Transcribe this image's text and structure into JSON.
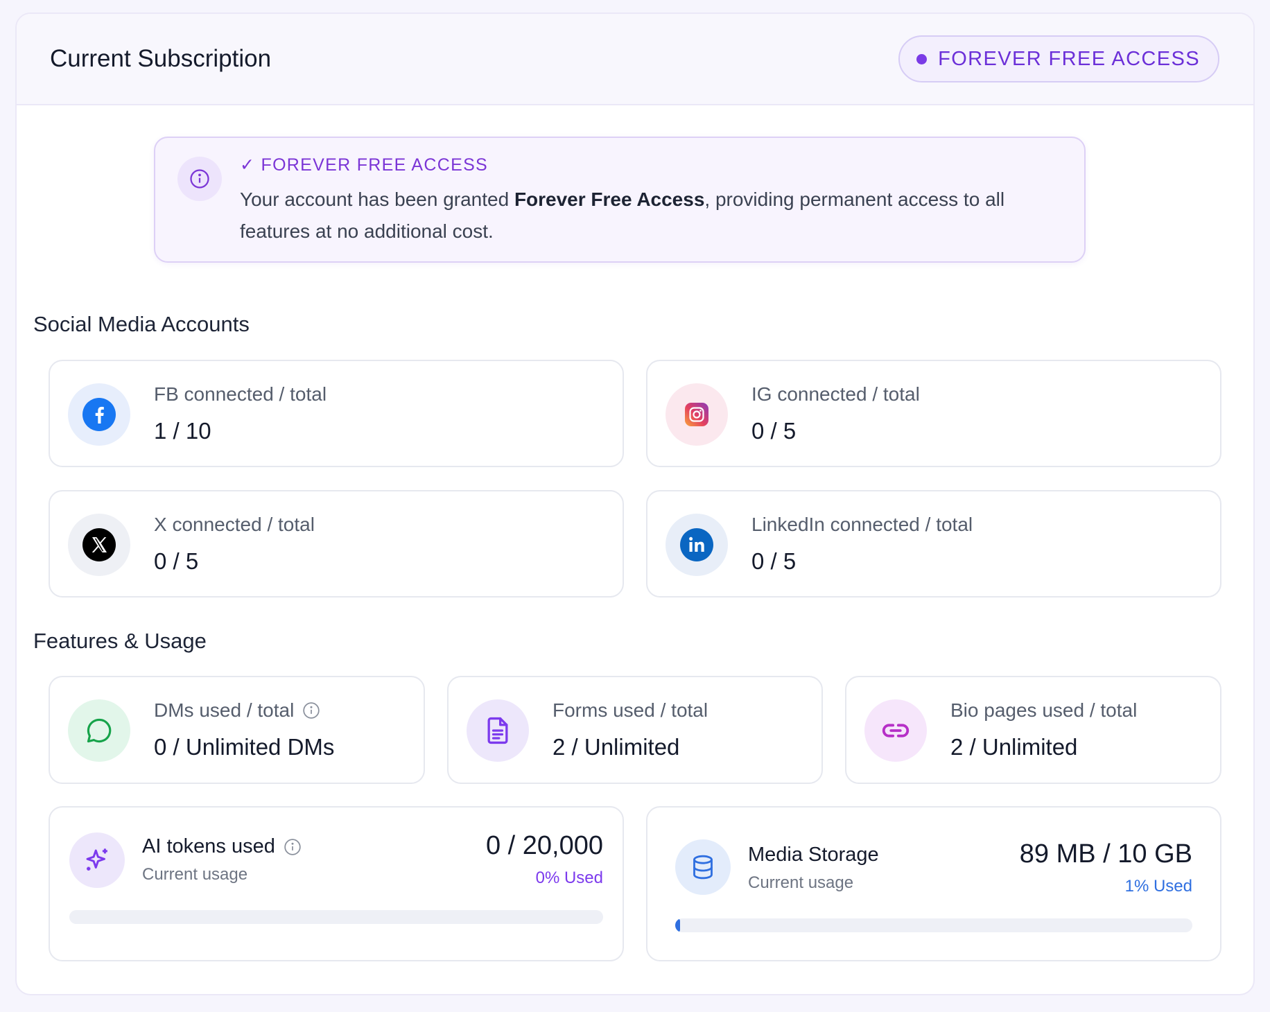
{
  "header": {
    "title": "Current Subscription",
    "badge": "FOREVER FREE ACCESS"
  },
  "notice": {
    "title": "✓ FOREVER FREE ACCESS",
    "text_before": "Your account has been granted ",
    "text_bold": "Forever Free Access",
    "text_after": ", providing permanent access to all features at no additional cost."
  },
  "social": {
    "title": "Social Media Accounts",
    "items": [
      {
        "icon": "facebook-icon",
        "label": "FB connected / total",
        "value": "1 / 10"
      },
      {
        "icon": "instagram-icon",
        "label": "IG connected / total",
        "value": "0 / 5"
      },
      {
        "icon": "x-icon",
        "label": "X connected / total",
        "value": "0 / 5"
      },
      {
        "icon": "linkedin-icon",
        "label": "LinkedIn connected / total",
        "value": "0 / 5"
      }
    ]
  },
  "features": {
    "title": "Features & Usage",
    "items": [
      {
        "icon": "chat-bubble-icon",
        "label": "DMs used / total",
        "value": "0 / Unlimited DMs"
      },
      {
        "icon": "document-icon",
        "label": "Forms used / total",
        "value": "2 / Unlimited"
      },
      {
        "icon": "link-icon",
        "label": "Bio pages used / total",
        "value": "2 / Unlimited"
      }
    ],
    "ai_tokens": {
      "icon": "sparkle-icon",
      "name": "AI tokens used",
      "sub": "Current usage",
      "value": "0 / 20,000",
      "percent_label": "0% Used",
      "percent": 0
    },
    "storage": {
      "icon": "database-icon",
      "name": "Media Storage",
      "sub": "Current usage",
      "value": "89 MB / 10 GB",
      "percent_label": "1% Used",
      "percent": 1
    }
  },
  "colors": {
    "accent": "#7a3be6",
    "facebook": "#1877f2",
    "linkedin": "#0a66c2",
    "storage_bar": "#3b82f6"
  }
}
